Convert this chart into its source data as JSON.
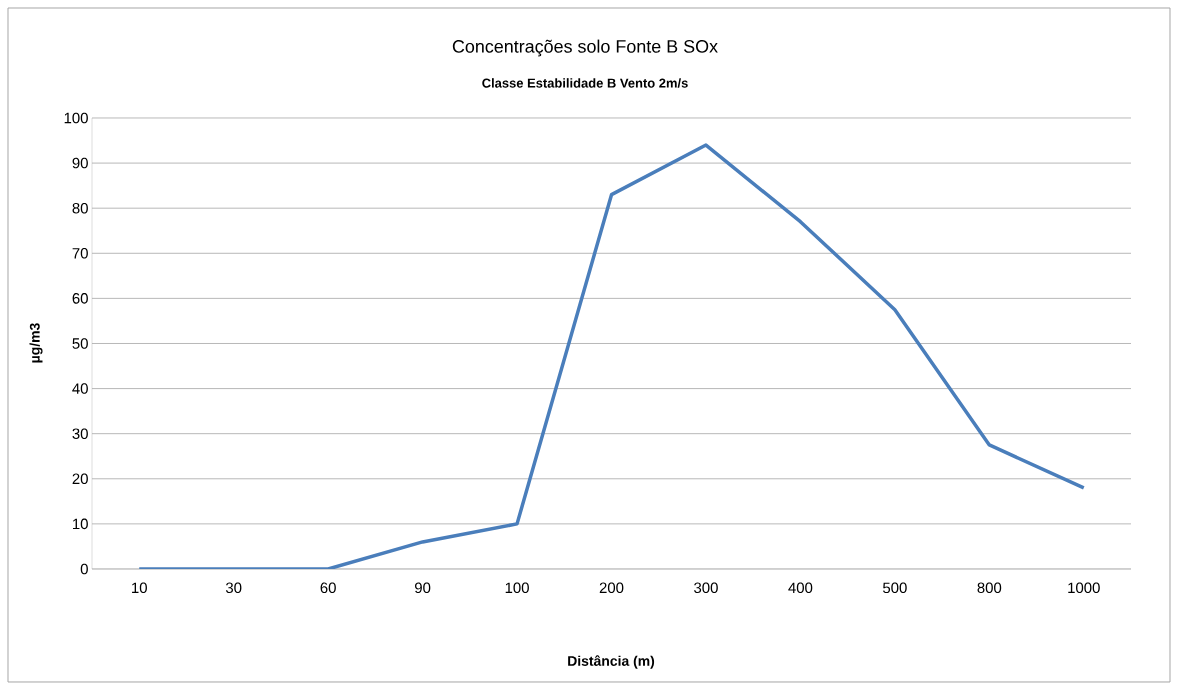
{
  "chart_data": {
    "type": "line",
    "title": "Concentrações solo Fonte B SOx",
    "subtitle": "Classe Estabilidade  B Vento 2m/s",
    "xlabel": "Distância (m)",
    "ylabel": "µg/m3",
    "categories": [
      "10",
      "30",
      "60",
      "90",
      "100",
      "200",
      "300",
      "400",
      "500",
      "800",
      "1000"
    ],
    "values": [
      0,
      0,
      0,
      6,
      10,
      83,
      94,
      77,
      57.5,
      27.5,
      18
    ],
    "color": "#4a7ebb",
    "ylim": [
      0,
      100
    ],
    "yticks": [
      0,
      10,
      20,
      30,
      40,
      50,
      60,
      70,
      80,
      90,
      100
    ],
    "grid": "y",
    "marker": "none",
    "line_style": "solid"
  }
}
